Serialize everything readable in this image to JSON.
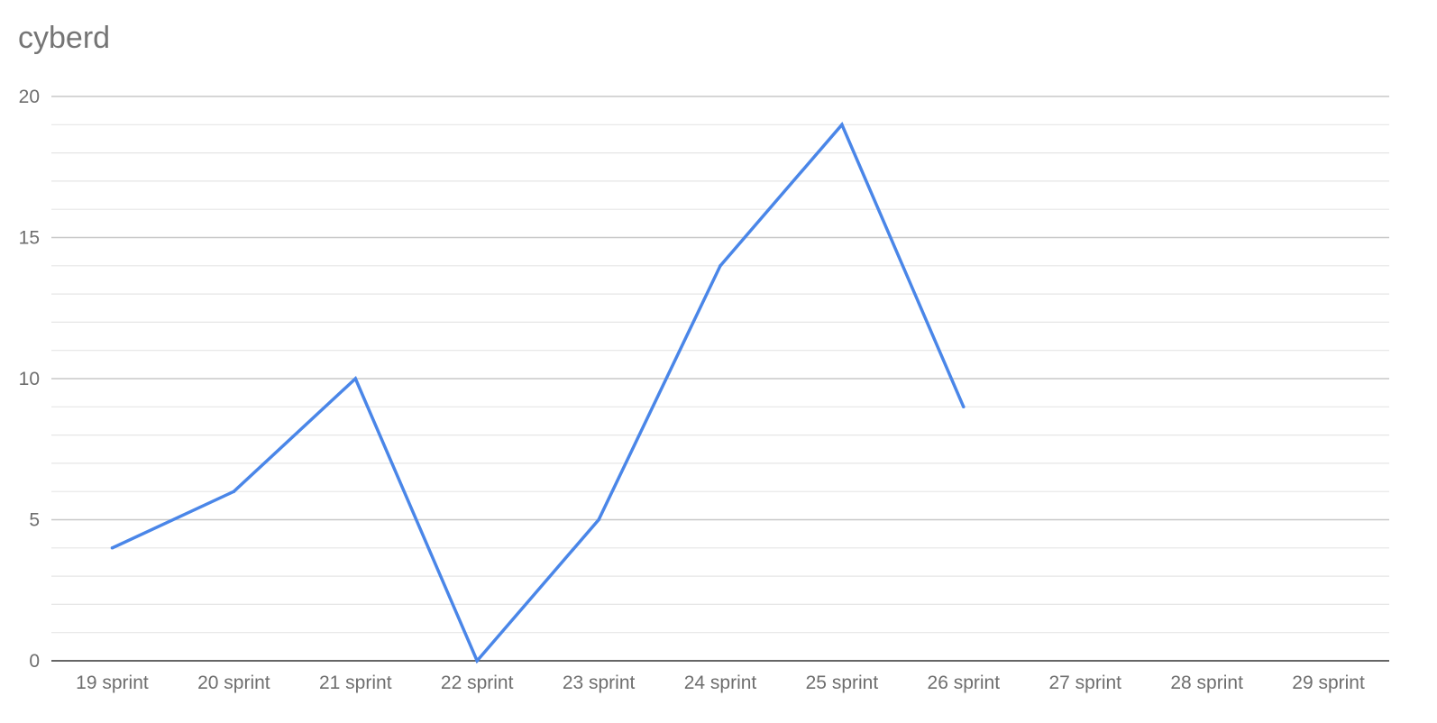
{
  "chart_data": {
    "type": "line",
    "title": "cyberd",
    "xlabel": "",
    "ylabel": "",
    "categories": [
      "19 sprint",
      "20 sprint",
      "21 sprint",
      "22 sprint",
      "23 sprint",
      "24 sprint",
      "25 sprint",
      "26 sprint",
      "27 sprint",
      "28 sprint",
      "29 sprint"
    ],
    "series": [
      {
        "values": [
          4,
          6,
          10,
          0,
          5,
          14,
          19,
          9,
          null,
          null,
          null
        ]
      }
    ],
    "ylim": [
      0,
      20
    ],
    "yticks": [
      0,
      5,
      10,
      15,
      20
    ],
    "minor_tick_step": 1,
    "grid": true,
    "legend": "none",
    "colors": {
      "line": "#4a86e8",
      "major_grid": "#c8c8c8",
      "minor_grid": "#e6e6e6",
      "baseline": "#333333",
      "title": "#757575",
      "tick_label": "#6e6e6e"
    }
  }
}
